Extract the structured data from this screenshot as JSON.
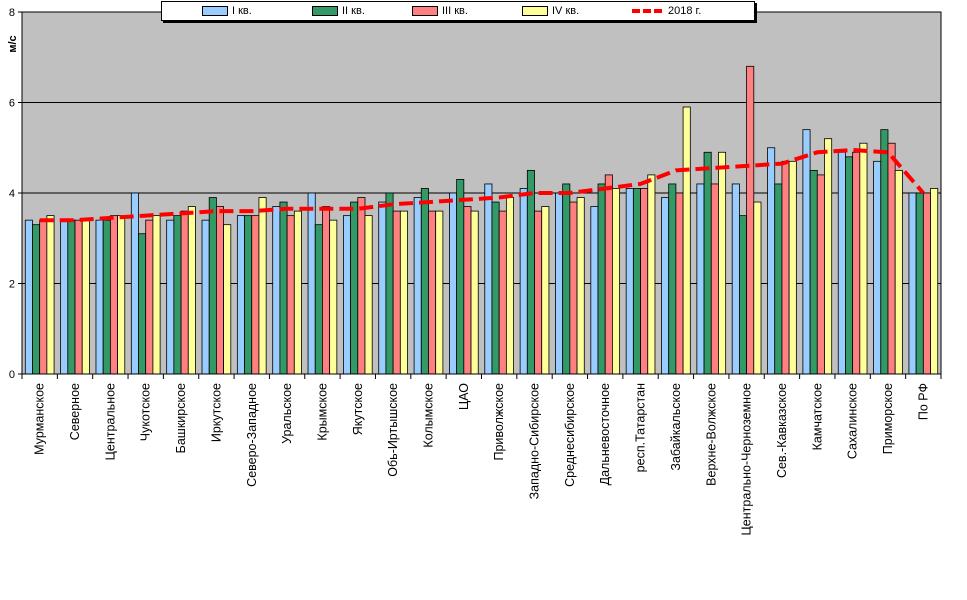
{
  "chart_data": {
    "type": "bar",
    "ylabel": "м/с",
    "ylim": [
      0,
      8
    ],
    "yticks": [
      "0",
      "2",
      "4",
      "6",
      "8"
    ],
    "grid": true,
    "legend_position": "top",
    "categories": [
      "Мурманское",
      "Северное",
      "Центральное",
      "Чукотское",
      "Башкирское",
      "Иркутское",
      "Северо-Западное",
      "Уральское",
      "Крымское",
      "Якутское",
      "Обь-Иртышское",
      "Колымское",
      "ЦАО",
      "Приволжское",
      "Западно-Сибирское",
      "Среднесибирское",
      "Дальневосточное",
      "респ.Татарстан",
      "Забайкальское",
      "Верхне-Волжское",
      "Центрально-Черноземное",
      "Сев.-Кавказское",
      "Камчатское",
      "Сахалинское",
      "Приморское",
      "По РФ"
    ],
    "series": [
      {
        "name": "I кв.",
        "color": "#99ccff",
        "values": [
          3.4,
          3.4,
          3.4,
          4.0,
          3.4,
          3.4,
          3.5,
          3.7,
          4.0,
          3.5,
          3.8,
          3.9,
          4.0,
          4.2,
          4.1,
          4.0,
          3.7,
          4.1,
          3.9,
          4.2,
          4.2,
          5.0,
          5.4,
          4.9,
          4.7,
          4.0
        ]
      },
      {
        "name": "II кв.",
        "color": "#339966",
        "values": [
          3.3,
          3.4,
          3.4,
          3.1,
          3.5,
          3.9,
          3.5,
          3.8,
          3.3,
          3.8,
          4.0,
          4.1,
          4.3,
          3.8,
          4.5,
          4.2,
          4.2,
          4.1,
          4.2,
          4.9,
          3.5,
          4.2,
          4.5,
          4.8,
          5.4,
          4.0
        ]
      },
      {
        "name": "III кв.",
        "color": "#ff8080",
        "values": [
          3.4,
          3.4,
          3.5,
          3.4,
          3.6,
          3.7,
          3.5,
          3.5,
          3.7,
          3.9,
          3.6,
          3.6,
          3.7,
          3.6,
          3.6,
          3.8,
          4.4,
          4.1,
          4.0,
          4.2,
          6.8,
          4.7,
          4.4,
          4.9,
          5.1,
          4.0
        ]
      },
      {
        "name": "IV кв.",
        "color": "#ffff99",
        "values": [
          3.5,
          3.4,
          3.5,
          3.5,
          3.7,
          3.3,
          3.9,
          3.6,
          3.4,
          3.5,
          3.6,
          3.6,
          3.6,
          3.9,
          3.7,
          3.9,
          4.1,
          4.4,
          5.9,
          4.9,
          3.8,
          4.7,
          5.2,
          5.1,
          4.5,
          4.1
        ]
      },
      {
        "name": "2018 г.",
        "type": "line",
        "color": "#ff0000",
        "values": [
          3.4,
          3.4,
          3.45,
          3.5,
          3.55,
          3.6,
          3.6,
          3.65,
          3.65,
          3.65,
          3.75,
          3.8,
          3.85,
          3.9,
          4.0,
          4.0,
          4.1,
          4.2,
          4.5,
          4.55,
          4.6,
          4.65,
          4.9,
          4.95,
          4.9,
          4.0
        ]
      }
    ]
  }
}
